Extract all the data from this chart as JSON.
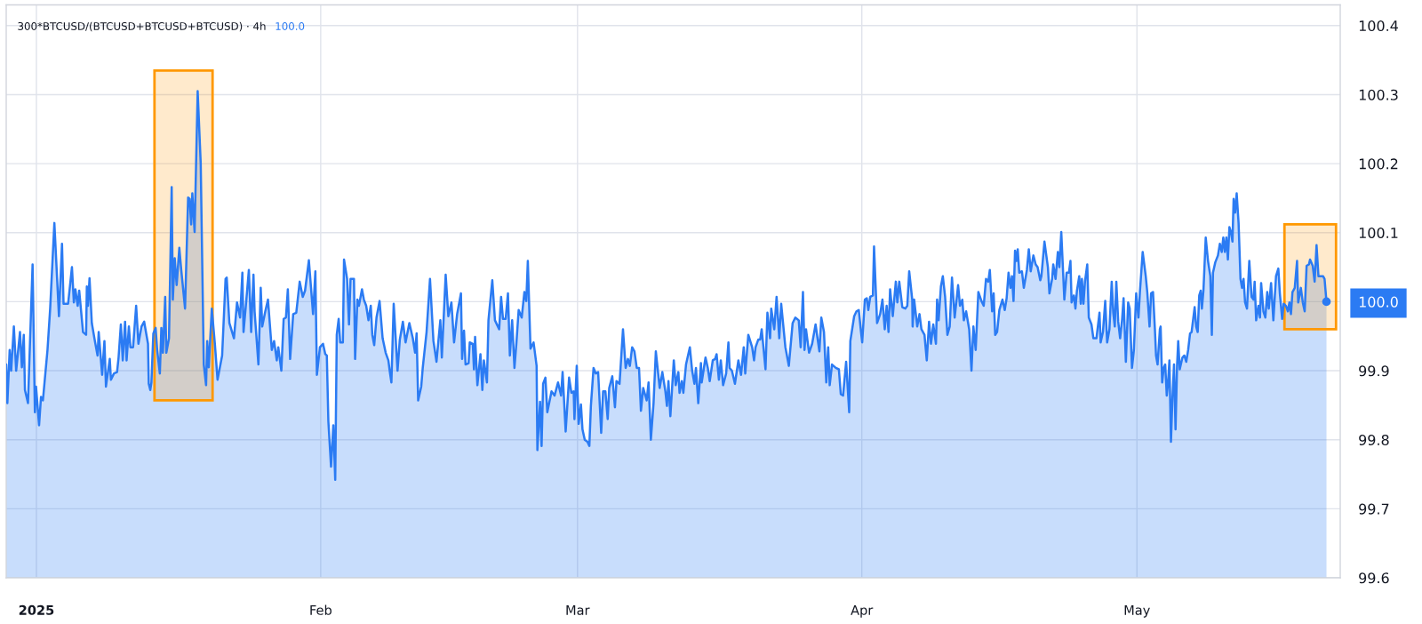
{
  "chart_data": {
    "type": "area",
    "title": "300*BTCUSD/(BTCUSD+BTCUSD+BTCUSD) · 4h",
    "subtitle": "100.0",
    "x": [
      "2024-12-28T17:00",
      "2024-12-28T20:00",
      "2024-12-29T02:00",
      "2024-12-29T06:00",
      "2024-12-29T13:00",
      "2024-12-29T19:00",
      "2024-12-30T05:00",
      "2024-12-30T10:00",
      "2024-12-30T15:00",
      "2024-12-30T18:00",
      "2024-12-31T02:00",
      "2024-12-31T14:00",
      "2024-12-31T20:00",
      "2024-12-31T23:00",
      "2025-01-01T07:00",
      "2025-01-01T12:00",
      "2025-01-01T17:00",
      "2025-01-02T05:00",
      "2025-01-02T12:00",
      "2025-01-02T23:00",
      "2025-01-03T11:00",
      "2025-01-03T19:00",
      "2025-01-03T23:00",
      "2025-01-04T11:00",
      "2025-01-04T21:00",
      "2025-01-05T02:00",
      "2025-01-05T06:00",
      "2025-01-05T12:00",
      "2025-01-05T16:00",
      "2025-01-06T02:00",
      "2025-01-06T10:00",
      "2025-01-06T12:00",
      "2025-01-06T15:00",
      "2025-01-06T19:00",
      "2025-01-07T01:00",
      "2025-01-07T09:00",
      "2025-01-07T16:00",
      "2025-01-07T19:00",
      "2025-01-08T04:00",
      "2025-01-08T10:00",
      "2025-01-08T14:00",
      "2025-01-09T00:00",
      "2025-01-09T03:00",
      "2025-01-09T11:00",
      "2025-01-09T19:00",
      "2025-01-09T23:00",
      "2025-01-10T05:00",
      "2025-01-10T10:00",
      "2025-01-10T16:00",
      "2025-01-10T20:00",
      "2025-01-11T02:00",
      "2025-01-11T06:00",
      "2025-01-11T13:00",
      "2025-01-11T21:00",
      "2025-01-12T03:00",
      "2025-01-12T11:00",
      "2025-01-12T18:00",
      "2025-01-13T04:00",
      "2025-01-13T06:00",
      "2025-01-13T10:00",
      "2025-01-13T13:00",
      "2025-01-13T18:00",
      "2025-01-14T00:00",
      "2025-01-14T04:00",
      "2025-01-14T11:00",
      "2025-01-14T15:00",
      "2025-01-14T19:00",
      "2025-01-15T01:00",
      "2025-01-15T04:00",
      "2025-01-15T11:00",
      "2025-01-15T18:00",
      "2025-01-15T21:00",
      "2025-01-16T02:00",
      "2025-01-16T07:00",
      "2025-01-16T14:00",
      "2025-01-16T19:00",
      "2025-01-17T05:00",
      "2025-01-17T13:00",
      "2025-01-17T17:00",
      "2025-01-17T21:00",
      "2025-01-18T00:00",
      "2025-01-18T06:00",
      "2025-01-18T14:00",
      "2025-01-18T22:00",
      "2025-01-19T06:00",
      "2025-01-19T12:00",
      "2025-01-19T15:00",
      "2025-01-19T19:00",
      "2025-01-20T03:00",
      "2025-01-20T11:00",
      "2025-01-20T18:00",
      "2025-01-21T06:00",
      "2025-01-21T15:00",
      "2025-01-21T18:00",
      "2025-01-22T01:00",
      "2025-01-22T13:00",
      "2025-01-22T21:00",
      "2025-01-23T05:00",
      "2025-01-23T11:00",
      "2025-01-23T14:00",
      "2025-01-23T20:00",
      "2025-01-24T04:00",
      "2025-01-24T10:00",
      "2025-01-24T16:00",
      "2025-01-24T19:00",
      "2025-01-25T05:00",
      "2025-01-25T11:00",
      "2025-01-25T15:00",
      "2025-01-25T23:00",
      "2025-01-26T06:00",
      "2025-01-26T16:00",
      "2025-01-26T22:00",
      "2025-01-27T05:00",
      "2025-01-27T09:00",
      "2025-01-27T17:00",
      "2025-01-27T23:00",
      "2025-01-28T05:00",
      "2025-01-28T10:00",
      "2025-01-28T16:00",
      "2025-01-29T00:00",
      "2025-01-29T08:00",
      "2025-01-29T17:00",
      "2025-01-30T01:00",
      "2025-01-30T07:00",
      "2025-01-30T17:00",
      "2025-01-31T04:00",
      "2025-01-31T10:00",
      "2025-01-31T14:00",
      "2025-01-31T22:00",
      "2025-02-01T06:00",
      "2025-02-01T12:00",
      "2025-02-01T16:00",
      "2025-02-01T20:00",
      "2025-02-02T03:00",
      "2025-02-02T09:00",
      "2025-02-02T14:00",
      "2025-02-02T18:00",
      "2025-02-02T23:00",
      "2025-02-03T03:00",
      "2025-02-03T10:00",
      "2025-02-03T13:00",
      "2025-02-03T21:00",
      "2025-02-04T02:00",
      "2025-02-04T06:00",
      "2025-02-04T15:00",
      "2025-02-04T18:00",
      "2025-02-05T00:00",
      "2025-02-05T04:00",
      "2025-02-05T12:00",
      "2025-02-05T17:00",
      "2025-02-05T23:00",
      "2025-02-06T05:00",
      "2025-02-06T11:00",
      "2025-02-06T15:00",
      "2025-02-06T20:00",
      "2025-02-07T02:00",
      "2025-02-07T10:00",
      "2025-02-07T18:00",
      "2025-02-08T02:00",
      "2025-02-08T09:00",
      "2025-02-08T13:00",
      "2025-02-08T17:00",
      "2025-02-08T23:00",
      "2025-02-09T09:00",
      "2025-02-09T15:00",
      "2025-02-09T23:00",
      "2025-02-10T06:00",
      "2025-02-10T16:00",
      "2025-02-11T01:00",
      "2025-02-11T07:00",
      "2025-02-11T11:00",
      "2025-02-11T15:00",
      "2025-02-11T23:00",
      "2025-02-12T03:00",
      "2025-02-12T13:00",
      "2025-02-12T22:00",
      "2025-02-13T07:00",
      "2025-02-13T15:00",
      "2025-02-14T01:00",
      "2025-02-14T05:00",
      "2025-02-14T15:00",
      "2025-02-14T22:00",
      "2025-02-15T06:00",
      "2025-02-15T13:00",
      "2025-02-15T21:00",
      "2025-02-16T07:00",
      "2025-02-16T10:00",
      "2025-02-16T15:00",
      "2025-02-16T19:00",
      "2025-02-17T03:00",
      "2025-02-17T06:00",
      "2025-02-17T14:00",
      "2025-02-17T17:00",
      "2025-02-17T20:00",
      "2025-02-18T02:00",
      "2025-02-18T10:00",
      "2025-02-18T15:00",
      "2025-02-18T19:00",
      "2025-02-19T03:00",
      "2025-02-19T07:00",
      "2025-02-19T17:00",
      "2025-02-20T00:00",
      "2025-02-20T11:00",
      "2025-02-20T16:00",
      "2025-02-20T21:00",
      "2025-02-21T04:00",
      "2025-02-21T10:00",
      "2025-02-21T15:00",
      "2025-02-21T21:00",
      "2025-02-22T03:00",
      "2025-02-22T08:00",
      "2025-02-22T14:00",
      "2025-02-22T22:00",
      "2025-02-23T05:00",
      "2025-02-23T10:00",
      "2025-02-23T14:00",
      "2025-02-23T21:00",
      "2025-02-24T05:00",
      "2025-02-24T13:00",
      "2025-02-24T15:00",
      "2025-02-24T22:00",
      "2025-02-25T02:00",
      "2025-02-25T06:00",
      "2025-02-25T12:00",
      "2025-02-25T17:00",
      "2025-02-26T04:00",
      "2025-02-26T12:00",
      "2025-02-26T21:00",
      "2025-02-27T05:00",
      "2025-02-27T09:00",
      "2025-02-27T17:00",
      "2025-02-28T02:00",
      "2025-02-28T08:00",
      "2025-02-28T14:00",
      "2025-02-28T16:00",
      "2025-02-28T22:00",
      "2025-03-01T03:00",
      "2025-03-01T09:00",
      "2025-03-01T13:00",
      "2025-03-01T19:00",
      "2025-03-02T02:00",
      "2025-03-02T07:00",
      "2025-03-02T11:00",
      "2025-03-02T18:00",
      "2025-03-03T00:00",
      "2025-03-03T06:00",
      "2025-03-03T14:00",
      "2025-03-03T19:00",
      "2025-03-04T01:00",
      "2025-03-04T07:00",
      "2025-03-04T11:00",
      "2025-03-04T19:00",
      "2025-03-05T02:00",
      "2025-03-05T06:00",
      "2025-03-05T14:00",
      "2025-03-05T23:00",
      "2025-03-06T06:00",
      "2025-03-06T12:00",
      "2025-03-06T17:00",
      "2025-03-06T23:00",
      "2025-03-07T05:00",
      "2025-03-07T11:00",
      "2025-03-07T17:00",
      "2025-03-07T22:00",
      "2025-03-08T04:00",
      "2025-03-08T13:00",
      "2025-03-08T18:00",
      "2025-03-09T00:00",
      "2025-03-09T07:00",
      "2025-03-09T13:00",
      "2025-03-09T23:00",
      "2025-03-10T06:00",
      "2025-03-10T14:00",
      "2025-03-10T18:00",
      "2025-03-10T22:00",
      "2025-03-11T03:00",
      "2025-03-11T12:00",
      "2025-03-11T17:00",
      "2025-03-12T00:00",
      "2025-03-12T03:00",
      "2025-03-12T09:00",
      "2025-03-12T13:00",
      "2025-03-12T20:00",
      "2025-03-13T06:00",
      "2025-03-13T12:00",
      "2025-03-13T18:00",
      "2025-03-13T22:00",
      "2025-03-14T04:00",
      "2025-03-14T11:00",
      "2025-03-14T13:00",
      "2025-03-14T23:00",
      "2025-03-15T05:00",
      "2025-03-15T10:00",
      "2025-03-15T18:00",
      "2025-03-16T00:00",
      "2025-03-16T04:00",
      "2025-03-16T10:00",
      "2025-03-16T15:00",
      "2025-03-16T21:00",
      "2025-03-17T05:00",
      "2025-03-17T11:00",
      "2025-03-17T14:00",
      "2025-03-17T20:00",
      "2025-03-18T04:00",
      "2025-03-18T13:00",
      "2025-03-18T20:00",
      "2025-03-19T03:00",
      "2025-03-19T07:00",
      "2025-03-19T15:00",
      "2025-03-20T01:00",
      "2025-03-20T06:00",
      "2025-03-20T10:00",
      "2025-03-20T17:00",
      "2025-03-20T22:00",
      "2025-03-21T02:00",
      "2025-03-21T12:00",
      "2025-03-21T17:00",
      "2025-03-22T00:00",
      "2025-03-22T03:00",
      "2025-03-22T11:00",
      "2025-03-22T17:00",
      "2025-03-23T00:00",
      "2025-03-23T05:00",
      "2025-03-23T16:00",
      "2025-03-24T01:00",
      "2025-03-24T11:00",
      "2025-03-24T18:00",
      "2025-03-25T03:00",
      "2025-03-25T08:00",
      "2025-03-25T14:00",
      "2025-03-25T18:00",
      "2025-03-25T22:00",
      "2025-03-26T06:00",
      "2025-03-26T14:00",
      "2025-03-26T23:00",
      "2025-03-27T09:00",
      "2025-03-27T14:00",
      "2025-03-27T21:00",
      "2025-03-28T03:00",
      "2025-03-28T08:00",
      "2025-03-28T12:00",
      "2025-03-28T18:00",
      "2025-03-29T04:00",
      "2025-03-29T12:00",
      "2025-03-29T17:00",
      "2025-03-29T23:00",
      "2025-03-30T07:00",
      "2025-03-30T15:00",
      "2025-03-30T18:00",
      "2025-03-31T04:00",
      "2025-03-31T10:00",
      "2025-03-31T16:00",
      "2025-03-31T22:00",
      "2025-04-01T01:00",
      "2025-04-01T08:00",
      "2025-04-01T13:00",
      "2025-04-01T17:00",
      "2025-04-01T22:00",
      "2025-04-02T05:00",
      "2025-04-02T08:00",
      "2025-04-02T16:00",
      "2025-04-03T00:00",
      "2025-04-03T06:00",
      "2025-04-03T12:00",
      "2025-04-03T17:00",
      "2025-04-03T22:00",
      "2025-04-04T02:00",
      "2025-04-04T09:00",
      "2025-04-04T17:00",
      "2025-04-04T21:00",
      "2025-04-05T02:00",
      "2025-04-05T10:00",
      "2025-04-05T18:00",
      "2025-04-05T23:00",
      "2025-04-06T04:00",
      "2025-04-06T12:00",
      "2025-04-06T13:00",
      "2025-04-06T17:00",
      "2025-04-07T01:00",
      "2025-04-07T07:00",
      "2025-04-07T12:00",
      "2025-04-07T20:00",
      "2025-04-08T02:00",
      "2025-04-08T08:00",
      "2025-04-08T13:00",
      "2025-04-08T19:00",
      "2025-04-09T02:00",
      "2025-04-09T05:00",
      "2025-04-09T09:00",
      "2025-04-09T15:00",
      "2025-04-09T20:00",
      "2025-04-10T02:00",
      "2025-04-10T08:00",
      "2025-04-10T14:00",
      "2025-04-10T20:00",
      "2025-04-11T03:00",
      "2025-04-11T12:00",
      "2025-04-11T17:00",
      "2025-04-11T23:00",
      "2025-04-12T03:00",
      "2025-04-12T09:00",
      "2025-04-12T17:00",
      "2025-04-12T23:00",
      "2025-04-13T04:00",
      "2025-04-13T10:00",
      "2025-04-13T17:00",
      "2025-04-14T01:00",
      "2025-04-14T07:00",
      "2025-04-14T13:00",
      "2025-04-14T19:00",
      "2025-04-14T23:00",
      "2025-04-15T05:00",
      "2025-04-15T09:00",
      "2025-04-15T13:00",
      "2025-04-15T18:00",
      "2025-04-16T00:00",
      "2025-04-16T08:00",
      "2025-04-16T14:00",
      "2025-04-16T19:00",
      "2025-04-17T00:00",
      "2025-04-17T05:00",
      "2025-04-17T09:00",
      "2025-04-17T13:00",
      "2025-04-17T17:00",
      "2025-04-17T21:00",
      "2025-04-18T00:00",
      "2025-04-18T04:00",
      "2025-04-18T11:00",
      "2025-04-18T16:00",
      "2025-04-19T00:00",
      "2025-04-19T05:00",
      "2025-04-19T10:00",
      "2025-04-19T17:00",
      "2025-04-19T23:00",
      "2025-04-20T04:00",
      "2025-04-20T11:00",
      "2025-04-20T14:00",
      "2025-04-20T22:00",
      "2025-04-21T07:00",
      "2025-04-21T11:00",
      "2025-04-21T18:00",
      "2025-04-21T21:00",
      "2025-04-22T03:00",
      "2025-04-22T09:00",
      "2025-04-22T13:00",
      "2025-04-22T18:00",
      "2025-04-23T02:00",
      "2025-04-23T08:00",
      "2025-04-23T14:00",
      "2025-04-23T18:00",
      "2025-04-23T21:00",
      "2025-04-24T03:00",
      "2025-04-24T07:00",
      "2025-04-24T11:00",
      "2025-04-24T17:00",
      "2025-04-24T21:00",
      "2025-04-25T00:00",
      "2025-04-25T04:00",
      "2025-04-25T08:00",
      "2025-04-25T14:00",
      "2025-04-25T18:00",
      "2025-04-26T01:00",
      "2025-04-26T06:00",
      "2025-04-26T14:00",
      "2025-04-26T22:00",
      "2025-04-27T01:00",
      "2025-04-27T07:00",
      "2025-04-27T13:00",
      "2025-04-27T18:00",
      "2025-04-28T00:00",
      "2025-04-28T06:00",
      "2025-04-28T10:00",
      "2025-04-28T14:00",
      "2025-04-28T18:00",
      "2025-04-28T23:00",
      "2025-04-29T04:00",
      "2025-04-29T09:00",
      "2025-04-29T13:00",
      "2025-04-29T19:00",
      "2025-04-30T01:00",
      "2025-04-30T05:00",
      "2025-04-30T11:00",
      "2025-04-30T16:00",
      "2025-04-30T22:00",
      "2025-05-01T04:00",
      "2025-05-01T08:00",
      "2025-05-01T15:00",
      "2025-05-01T23:00",
      "2025-05-02T03:00",
      "2025-05-02T09:00",
      "2025-05-02T13:00",
      "2025-05-02T18:00",
      "2025-05-02T23:00",
      "2025-05-03T02:00",
      "2025-05-03T06:00",
      "2025-05-03T12:00",
      "2025-05-03T14:00",
      "2025-05-03T18:00",
      "2025-05-03T22:00",
      "2025-05-04T02:00",
      "2025-05-04T06:00",
      "2025-05-04T09:00",
      "2025-05-04T13:00",
      "2025-05-04T17:00",
      "2025-05-04T21:00",
      "2025-05-05T01:00",
      "2025-05-05T05:00",
      "2025-05-05T09:00",
      "2025-05-05T12:00",
      "2025-05-05T16:00",
      "2025-05-05T23:00",
      "2025-05-06T04:00",
      "2025-05-06T09:00",
      "2025-05-06T14:00",
      "2025-05-06T19:00",
      "2025-05-06T23:00",
      "2025-05-07T07:00",
      "2025-05-07T11:00",
      "2025-05-07T15:00",
      "2025-05-07T19:00",
      "2025-05-07T23:00",
      "2025-05-08T02:00",
      "2025-05-08T06:00",
      "2025-05-08T12:00",
      "2025-05-08T18:00",
      "2025-05-09T00:00",
      "2025-05-09T04:00",
      "2025-05-09T07:00",
      "2025-05-09T13:00",
      "2025-05-09T20:00",
      "2025-05-10T01:00",
      "2025-05-10T06:00",
      "2025-05-10T10:00",
      "2025-05-10T14:00",
      "2025-05-10T18:00",
      "2025-05-10T22:00",
      "2025-05-11T02:00",
      "2025-05-11T06:00",
      "2025-05-11T10:00",
      "2025-05-11T13:00",
      "2025-05-11T17:00",
      "2025-05-11T21:00",
      "2025-05-12T02:00",
      "2025-05-12T07:00",
      "2025-05-12T11:00",
      "2025-05-12T15:00",
      "2025-05-12T19:00",
      "2025-05-13T00:00",
      "2025-05-13T06:00",
      "2025-05-13T12:00",
      "2025-05-13T17:00",
      "2025-05-13T20:00",
      "2025-05-14T00:00",
      "2025-05-14T06:00",
      "2025-05-14T10:00",
      "2025-05-14T13:00",
      "2025-05-14T19:00",
      "2025-05-15T00:00",
      "2025-05-15T05:00",
      "2025-05-15T09:00",
      "2025-05-15T15:00",
      "2025-05-15T21:00",
      "2025-05-16T04:00",
      "2025-05-16T10:00",
      "2025-05-16T14:00",
      "2025-05-16T20:00",
      "2025-05-17T00:00",
      "2025-05-17T06:00",
      "2025-05-17T11:00",
      "2025-05-17T15:00",
      "2025-05-17T19:00",
      "2025-05-17T23:00",
      "2025-05-18T05:00",
      "2025-05-18T11:00",
      "2025-05-18T14:00",
      "2025-05-18T21:00",
      "2025-05-19T02:00",
      "2025-05-19T07:00",
      "2025-05-19T12:00",
      "2025-05-19T18:00",
      "2025-05-19T21:00",
      "2025-05-20T04:00",
      "2025-05-20T09:00",
      "2025-05-20T14:00",
      "2025-05-20T19:00",
      "2025-05-21T00:00",
      "2025-05-21T07:00",
      "2025-05-21T11:00",
      "2025-05-21T16:00"
    ],
    "series": [
      {
        "color": "#2b7bf3",
        "values": [
          99.909,
          99.853,
          99.93,
          99.9,
          99.964,
          99.9,
          99.956,
          99.905,
          99.952,
          99.872,
          99.853,
          100.054,
          99.84,
          99.877,
          99.821,
          99.862,
          99.857,
          99.93,
          99.99,
          100.114,
          99.979,
          100.084,
          99.997,
          99.997,
          100.05,
          99.999,
          100.018,
          99.994,
          100.016,
          99.956,
          99.952,
          100.022,
          99.994,
          100.034,
          99.969,
          99.943,
          99.922,
          99.956,
          99.894,
          99.943,
          99.877,
          99.917,
          99.887,
          99.896,
          99.898,
          99.919,
          99.967,
          99.915,
          99.971,
          99.915,
          99.964,
          99.934,
          99.934,
          99.994,
          99.939,
          99.964,
          99.971,
          99.939,
          99.881,
          99.872,
          99.883,
          99.954,
          99.962,
          99.93,
          99.896,
          99.962,
          99.926,
          100.007,
          99.926,
          99.947,
          100.166,
          100.003,
          100.063,
          100.024,
          100.078,
          100.046,
          99.99,
          100.151,
          100.149,
          100.112,
          100.157,
          100.101,
          100.305,
          100.2,
          99.909,
          99.879,
          99.943,
          99.905,
          99.99,
          99.939,
          99.887,
          99.922,
          100.033,
          100.035,
          99.969,
          99.947,
          99.999,
          99.977,
          100.042,
          99.956,
          99.994,
          100.046,
          99.956,
          100.039,
          99.986,
          99.909,
          100.02,
          99.964,
          99.986,
          100.003,
          99.93,
          99.943,
          99.915,
          99.934,
          99.9,
          99.975,
          99.977,
          100.018,
          99.917,
          99.982,
          99.984,
          100.029,
          100.007,
          100.016,
          100.06,
          99.982,
          100.044,
          99.894,
          99.934,
          99.939,
          99.924,
          99.922,
          99.827,
          99.761,
          99.821,
          99.742,
          99.952,
          99.975,
          99.941,
          99.941,
          100.061,
          100.033,
          99.967,
          100.033,
          100.033,
          99.917,
          100.003,
          99.994,
          100.018,
          100.003,
          99.994,
          99.973,
          99.994,
          99.952,
          99.937,
          99.977,
          100.001,
          99.947,
          99.926,
          99.915,
          99.898,
          99.883,
          99.997,
          99.9,
          99.945,
          99.971,
          99.941,
          99.969,
          99.947,
          99.926,
          99.954,
          99.857,
          99.877,
          99.904,
          99.956,
          100.033,
          99.943,
          99.913,
          99.973,
          99.919,
          100.039,
          99.979,
          99.999,
          99.941,
          99.982,
          100.012,
          99.917,
          99.958,
          99.909,
          99.911,
          99.941,
          99.939,
          99.902,
          99.949,
          99.879,
          99.924,
          99.872,
          99.915,
          99.883,
          99.973,
          100.031,
          99.973,
          99.96,
          100.007,
          99.975,
          99.975,
          100.012,
          99.922,
          99.973,
          99.904,
          99.939,
          99.988,
          99.977,
          100.014,
          100.001,
          100.059,
          99.932,
          99.941,
          99.907,
          99.785,
          99.855,
          99.791,
          99.881,
          99.89,
          99.84,
          99.87,
          99.864,
          99.883,
          99.864,
          99.898,
          99.812,
          99.89,
          99.868,
          99.87,
          99.83,
          99.907,
          99.823,
          99.851,
          99.815,
          99.8,
          99.797,
          99.791,
          99.849,
          99.904,
          99.896,
          99.898,
          99.81,
          99.87,
          99.87,
          99.83,
          99.875,
          99.892,
          99.847,
          99.885,
          99.881,
          99.96,
          99.904,
          99.917,
          99.907,
          99.934,
          99.928,
          99.904,
          99.904,
          99.842,
          99.875,
          99.857,
          99.883,
          99.8,
          99.853,
          99.928,
          99.875,
          99.898,
          99.87,
          99.849,
          99.885,
          99.834,
          99.915,
          99.879,
          99.898,
          99.868,
          99.885,
          99.868,
          99.909,
          99.934,
          99.9,
          99.881,
          99.904,
          99.853,
          99.911,
          99.883,
          99.919,
          99.904,
          99.885,
          99.915,
          99.917,
          99.924,
          99.887,
          99.915,
          99.879,
          99.896,
          99.941,
          99.904,
          99.9,
          99.881,
          99.915,
          99.894,
          99.934,
          99.896,
          99.952,
          99.934,
          99.915,
          99.934,
          99.945,
          99.945,
          99.96,
          99.902,
          99.984,
          99.947,
          99.99,
          99.96,
          100.007,
          99.947,
          99.997,
          99.934,
          99.907,
          99.969,
          99.977,
          99.973,
          99.934,
          100.014,
          99.93,
          99.96,
          99.926,
          99.939,
          99.967,
          99.928,
          99.977,
          99.956,
          99.883,
          99.934,
          99.879,
          99.909,
          99.904,
          99.902,
          99.866,
          99.864,
          99.913,
          99.84,
          99.943,
          99.979,
          99.986,
          99.988,
          99.956,
          99.941,
          100.003,
          100.005,
          99.988,
          100.007,
          100.009,
          100.08,
          99.969,
          99.982,
          100.003,
          99.96,
          99.994,
          99.956,
          100.018,
          99.979,
          100.029,
          99.999,
          100.029,
          99.992,
          99.99,
          99.994,
          100.044,
          100.003,
          99.964,
          100.003,
          99.964,
          99.982,
          99.96,
          99.952,
          99.915,
          99.971,
          99.939,
          99.967,
          99.939,
          100.003,
          99.973,
          100.022,
          100.037,
          100.007,
          99.952,
          99.964,
          100.035,
          99.977,
          100.024,
          99.994,
          100.003,
          99.973,
          99.986,
          99.96,
          99.9,
          99.964,
          99.93,
          100.014,
          100.001,
          99.994,
          100.033,
          100.029,
          100.046,
          99.986,
          100.012,
          99.952,
          99.956,
          99.988,
          100.003,
          99.988,
          100.005,
          100.042,
          100.02,
          100.037,
          100.001,
          100.074,
          100.059,
          100.076,
          100.042,
          100.044,
          100.02,
          100.046,
          100.076,
          100.044,
          100.067,
          100.054,
          100.05,
          100.031,
          100.037,
          100.087,
          100.05,
          100.012,
          100.033,
          100.054,
          100.033,
          100.072,
          100.05,
          100.101,
          100.003,
          100.042,
          100.042,
          100.059,
          99.999,
          100.009,
          99.99,
          100.016,
          100.037,
          99.997,
          100.033,
          99.997,
          100.029,
          100.054,
          99.977,
          99.967,
          99.947,
          99.947,
          99.984,
          99.941,
          99.956,
          100.001,
          99.941,
          99.96,
          100.029,
          99.984,
          99.964,
          100.029,
          99.971,
          99.947,
          99.973,
          100.005,
          99.913,
          99.999,
          99.99,
          99.904,
          99.93,
          100.012,
          99.977,
          100.016,
          100.072,
          100.037,
          100.014,
          99.964,
          100.012,
          100.014,
          99.96,
          99.922,
          99.909,
          99.96,
          99.964,
          99.883,
          99.904,
          99.909,
          99.864,
          99.879,
          99.915,
          99.797,
          99.862,
          99.909,
          99.815,
          99.907,
          99.943,
          99.902,
          99.919,
          99.922,
          99.913,
          99.93,
          99.954,
          99.956,
          99.992,
          99.964,
          99.956,
          100.009,
          100.016,
          99.99,
          100.016,
          100.093,
          100.059,
          100.037,
          99.952,
          100.042,
          100.057,
          100.067,
          100.084,
          100.072,
          100.093,
          100.072,
          100.093,
          100.061,
          100.108,
          100.101,
          100.087,
          100.149,
          100.129,
          100.157,
          100.114,
          100.033,
          100.02,
          100.033,
          99.999,
          99.99,
          100.059,
          100.007,
          100.003,
          100.029,
          99.973,
          99.994,
          99.977,
          100.027,
          99.986,
          99.977,
          100.014,
          99.99,
          100.027,
          99.973,
          100.037,
          100.048,
          100.012,
          99.975,
          99.997,
          99.994,
          99.986,
          99.999,
          99.982,
          100.014,
          100.02,
          100.059,
          99.999,
          100.02,
          99.999,
          99.986,
          100.052,
          100.054,
          100.061,
          100.052,
          100.029,
          100.082,
          100.037,
          100.037,
          100.037,
          100.033,
          100.0
        ]
      }
    ],
    "xlim": [
      "2024-12-28T17:00",
      "2025-05-23T04:00"
    ],
    "xticks": [
      {
        "value": "2025-01-01",
        "label": "2025"
      },
      {
        "value": "2025-02-01",
        "label": "Feb"
      },
      {
        "value": "2025-03-01",
        "label": "Mar"
      },
      {
        "value": "2025-04-01",
        "label": "Apr"
      },
      {
        "value": "2025-05-01",
        "label": "May"
      }
    ],
    "ylim": [
      99.6,
      100.43
    ],
    "yticks": [
      99.6,
      99.7,
      99.8,
      99.9,
      {
        "value": 100,
        "label": "100.0"
      },
      100.1,
      100.2,
      100.3,
      100.4
    ],
    "grid": true,
    "bands": [
      {
        "axis": "x",
        "from": "2025-01-13T21:00",
        "to": "2025-01-20T05:00",
        "color": "#ff9800"
      },
      {
        "axis": "x",
        "from": "2025-05-17T02:00",
        "to": "2025-05-22T17:00",
        "color": "#ff9800"
      }
    ]
  }
}
